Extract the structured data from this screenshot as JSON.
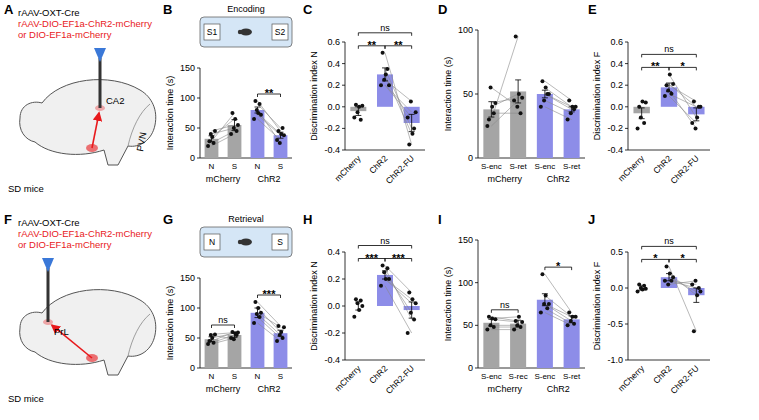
{
  "schematics": [
    {
      "panel": "A",
      "virus": "rAAV-OXT-Cre",
      "vectors": [
        "rAAV-DIO-EF1a-ChR2-mCherry",
        "or DIO-EF1a-mCherry"
      ],
      "regions": [
        "CA2",
        "PVN"
      ],
      "subject": "SD mice"
    },
    {
      "panel": "F",
      "virus": "rAAV-OXT-Cre",
      "vectors": [
        "rAAV-DIO-EF1a-ChR2-mCherry",
        "or DIO-EF1a-mCherry"
      ],
      "regions": [
        "PrL"
      ],
      "subject": "SD mice"
    }
  ],
  "chart_data": [
    {
      "panel": "B",
      "type": "bar",
      "inset": {
        "title": "Encoding",
        "items": [
          "S1",
          "S2"
        ]
      },
      "y_label": "Interaction time (s)",
      "categories": [
        "N",
        "S",
        "N",
        "S"
      ],
      "groups": [
        "mCherry",
        "ChR2"
      ],
      "values": [
        32,
        55,
        80,
        38
      ],
      "errors": [
        5,
        9,
        5,
        5
      ],
      "points": [
        [
          20,
          28,
          40,
          35,
          25,
          45
        ],
        [
          40,
          75,
          50,
          65,
          45,
          55
        ],
        [
          65,
          95,
          80,
          75,
          90,
          72
        ],
        [
          30,
          45,
          25,
          40,
          50,
          38
        ]
      ],
      "colors": [
        "#a5a5a5",
        "#a5a5a5",
        "#8d8de8",
        "#8d8de8"
      ],
      "annotations": [
        {
          "text": "**",
          "pair": [
            2,
            3
          ]
        }
      ],
      "ylim": [
        0,
        150
      ],
      "yticks": [
        0,
        50,
        100,
        150
      ]
    },
    {
      "panel": "C",
      "type": "bar",
      "y_label": "Discrimination index N",
      "categories": [
        "mCherry",
        "ChR2",
        "ChR2-FU"
      ],
      "values": [
        -0.04,
        0.3,
        -0.15
      ],
      "errors": [
        0.04,
        0.06,
        0.08
      ],
      "points": [
        [
          -0.1,
          0.02,
          -0.05,
          0.0,
          -0.12,
          0.01
        ],
        [
          0.2,
          0.5,
          0.25,
          0.3,
          0.35,
          0.2
        ],
        [
          -0.1,
          -0.35,
          0.05,
          -0.25,
          -0.2,
          -0.05
        ]
      ],
      "colors": [
        "#a5a5a5",
        "#8d8de8",
        "#8d8de8"
      ],
      "annotations": [
        {
          "text": "**",
          "pair": [
            0,
            1
          ]
        },
        {
          "text": "**",
          "pair": [
            1,
            2
          ]
        },
        {
          "text": "ns",
          "pair": [
            0,
            2
          ]
        }
      ],
      "ylim": [
        -0.4,
        0.6
      ],
      "yticks": [
        -0.4,
        -0.2,
        {
          "value": 0,
          "label": "0.0"
        },
        0.2,
        0.4,
        0.6
      ]
    },
    {
      "panel": "D",
      "type": "bar",
      "y_label": "Interaction time (s)",
      "categories": [
        "S-enc",
        "S-ret",
        "S-enc",
        "S-ret"
      ],
      "groups": [
        "mCherry",
        "ChR2"
      ],
      "values": [
        38,
        52,
        50,
        38
      ],
      "errors": [
        6,
        9,
        3,
        2
      ],
      "points": [
        [
          25,
          30,
          55,
          40,
          35,
          43
        ],
        [
          45,
          95,
          40,
          50,
          35,
          47
        ],
        [
          40,
          60,
          45,
          55,
          50,
          50
        ],
        [
          30,
          45,
          35,
          40,
          38,
          40
        ]
      ],
      "colors": [
        "#a5a5a5",
        "#a5a5a5",
        "#8d8de8",
        "#8d8de8"
      ],
      "annotations": [],
      "ylim": [
        0,
        100
      ],
      "yticks": [
        0,
        50,
        100
      ]
    },
    {
      "panel": "E",
      "type": "bar",
      "y_label": "Discrimination index F",
      "categories": [
        "mCherry",
        "ChR2",
        "ChR2-FU"
      ],
      "values": [
        -0.06,
        0.18,
        -0.07
      ],
      "errors": [
        0.05,
        0.04,
        0.06
      ],
      "points": [
        [
          -0.2,
          0.0,
          -0.1,
          0.05,
          -0.15,
          0.04
        ],
        [
          0.1,
          0.2,
          0.15,
          0.3,
          0.12,
          0.21
        ],
        [
          -0.15,
          0.05,
          -0.2,
          -0.1,
          0.0,
          0.0
        ]
      ],
      "colors": [
        "#a5a5a5",
        "#8d8de8",
        "#8d8de8"
      ],
      "annotations": [
        {
          "text": "**",
          "pair": [
            0,
            1
          ]
        },
        {
          "text": "*",
          "pair": [
            1,
            2
          ]
        },
        {
          "text": "ns",
          "pair": [
            0,
            2
          ]
        }
      ],
      "ylim": [
        -0.4,
        0.6
      ],
      "yticks": [
        -0.4,
        -0.2,
        {
          "value": 0,
          "label": "0.0"
        },
        0.2,
        0.4,
        0.6
      ]
    },
    {
      "panel": "G",
      "type": "bar",
      "inset": {
        "title": "Retrieval",
        "items": [
          "N",
          "S"
        ]
      },
      "y_label": "Interaction time (s)",
      "categories": [
        "N",
        "S",
        "N",
        "S"
      ],
      "groups": [
        "mCherry",
        "ChR2"
      ],
      "values": [
        48,
        55,
        92,
        58
      ],
      "errors": [
        4,
        4,
        8,
        5
      ],
      "points": [
        [
          40,
          45,
          55,
          50,
          42,
          56
        ],
        [
          50,
          60,
          48,
          58,
          55,
          59
        ],
        [
          75,
          110,
          90,
          100,
          85,
          92
        ],
        [
          45,
          70,
          55,
          60,
          50,
          68
        ]
      ],
      "colors": [
        "#a5a5a5",
        "#a5a5a5",
        "#8d8de8",
        "#8d8de8"
      ],
      "annotations": [
        {
          "text": "ns",
          "pair": [
            0,
            1
          ]
        },
        {
          "text": "***",
          "pair": [
            2,
            3
          ]
        }
      ],
      "ylim": [
        0,
        150
      ],
      "yticks": [
        0,
        50,
        100,
        150
      ]
    },
    {
      "panel": "H",
      "type": "bar",
      "y_label": "Discrimination index N",
      "categories": [
        "mCherry",
        "ChR2",
        "ChR2-FU"
      ],
      "values": [
        0.0,
        0.23,
        -0.03
      ],
      "errors": [
        0.03,
        0.03,
        0.06
      ],
      "points": [
        [
          -0.08,
          0.05,
          0.02,
          -0.03,
          0.04,
          0.0
        ],
        [
          0.15,
          0.3,
          0.25,
          0.2,
          0.28,
          0.2
        ],
        [
          -0.2,
          0.1,
          -0.05,
          0.05,
          -0.1,
          0.02
        ]
      ],
      "colors": [
        "#a5a5a5",
        "#8d8de8",
        "#8d8de8"
      ],
      "annotations": [
        {
          "text": "***",
          "pair": [
            0,
            1
          ]
        },
        {
          "text": "***",
          "pair": [
            1,
            2
          ]
        },
        {
          "text": "ns",
          "pair": [
            0,
            2
          ]
        }
      ],
      "ylim": [
        -0.4,
        0.4
      ],
      "yticks": [
        -0.4,
        -0.2,
        {
          "value": 0,
          "label": "0.0"
        },
        0.2,
        0.4
      ]
    },
    {
      "panel": "I",
      "type": "bar",
      "y_label": "Interaction time (s)",
      "categories": [
        "S-enc",
        "S-rec",
        "S-enc",
        "S-ret"
      ],
      "groups": [
        "mCherry",
        "ChR2"
      ],
      "values": [
        53,
        52,
        80,
        57
      ],
      "errors": [
        4,
        4,
        7,
        4
      ],
      "points": [
        [
          45,
          60,
          50,
          58,
          48,
          57
        ],
        [
          45,
          55,
          50,
          60,
          48,
          54
        ],
        [
          65,
          110,
          75,
          85,
          70,
          75
        ],
        [
          50,
          65,
          55,
          60,
          52,
          60
        ]
      ],
      "colors": [
        "#a5a5a5",
        "#a5a5a5",
        "#8d8de8",
        "#8d8de8"
      ],
      "annotations": [
        {
          "text": "ns",
          "pair": [
            0,
            1
          ]
        },
        {
          "text": "*",
          "pair": [
            2,
            3
          ]
        }
      ],
      "ylim": [
        0,
        150
      ],
      "yticks": [
        0,
        50,
        100,
        150
      ]
    },
    {
      "panel": "J",
      "type": "bar",
      "y_label": "Discrimination index F",
      "categories": [
        "mCherry",
        "ChR2",
        "ChR2-FU"
      ],
      "values": [
        0.0,
        0.15,
        -0.1
      ],
      "errors": [
        0.03,
        0.05,
        0.1
      ],
      "points": [
        [
          -0.05,
          0.05,
          0.0,
          -0.02,
          0.03,
          -0.01
        ],
        [
          0.1,
          0.3,
          0.05,
          0.2,
          0.1,
          0.15
        ],
        [
          0.05,
          -0.6,
          0.1,
          -0.1,
          0.0,
          -0.05
        ]
      ],
      "colors": [
        "#a5a5a5",
        "#8d8de8",
        "#8d8de8"
      ],
      "annotations": [
        {
          "text": "*",
          "pair": [
            0,
            1
          ]
        },
        {
          "text": "*",
          "pair": [
            1,
            2
          ]
        },
        {
          "text": "ns",
          "pair": [
            0,
            2
          ]
        }
      ],
      "ylim": [
        -1,
        0.5
      ],
      "yticks": [
        {
          "value": -1,
          "label": "-1.0"
        },
        -0.5,
        {
          "value": 0,
          "label": "0.0"
        },
        0.5
      ]
    }
  ]
}
